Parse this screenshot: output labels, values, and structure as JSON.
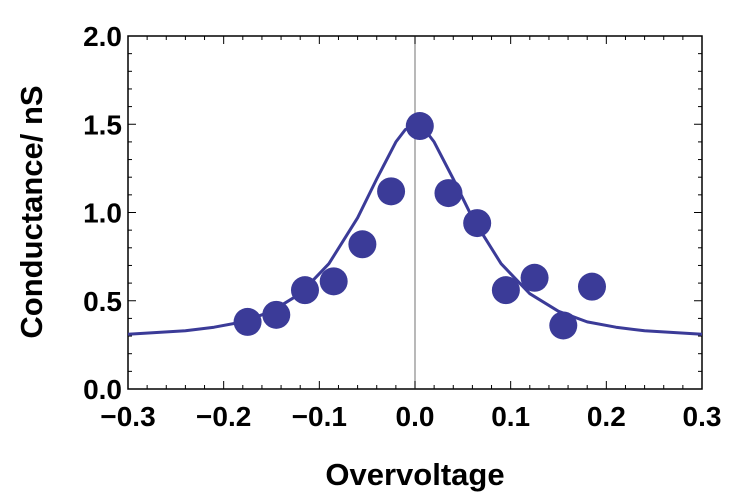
{
  "chart_data": {
    "type": "scatter",
    "title": "",
    "xlabel": "Overvoltage",
    "ylabel": "Conductance/ nS",
    "xlim": [
      -0.3,
      0.3
    ],
    "ylim": [
      0.0,
      2.0
    ],
    "x_ticks": [
      "-0.3",
      "-0.2",
      "-0.1",
      "0.0",
      "0.1",
      "0.2",
      "0.3"
    ],
    "x_tick_values": [
      -0.3,
      -0.2,
      -0.1,
      0.0,
      0.1,
      0.2,
      0.3
    ],
    "y_ticks": [
      "0.0",
      "0.5",
      "1.0",
      "1.5",
      "2.0"
    ],
    "y_tick_values": [
      0.0,
      0.5,
      1.0,
      1.5,
      2.0
    ],
    "grid": false,
    "color": "#3b3b98",
    "series": [
      {
        "type": "scatter",
        "x": [
          -0.175,
          -0.145,
          -0.115,
          -0.085,
          -0.055,
          -0.025,
          0.005,
          0.035,
          0.065,
          0.095,
          0.125,
          0.155,
          0.185
        ],
        "y": [
          0.38,
          0.42,
          0.56,
          0.61,
          0.82,
          1.12,
          1.49,
          1.11,
          0.94,
          0.56,
          0.63,
          0.36,
          0.58
        ]
      },
      {
        "type": "line",
        "x": [
          -0.3,
          -0.27,
          -0.24,
          -0.21,
          -0.18,
          -0.15,
          -0.12,
          -0.09,
          -0.06,
          -0.04,
          -0.02,
          -0.01,
          0.0,
          0.01,
          0.02,
          0.04,
          0.06,
          0.09,
          0.12,
          0.15,
          0.18,
          0.21,
          0.24,
          0.27,
          0.3
        ],
        "y": [
          0.31,
          0.32,
          0.33,
          0.35,
          0.38,
          0.44,
          0.54,
          0.71,
          0.97,
          1.19,
          1.4,
          1.47,
          1.49,
          1.47,
          1.4,
          1.19,
          0.97,
          0.71,
          0.54,
          0.44,
          0.38,
          0.35,
          0.33,
          0.32,
          0.31
        ]
      }
    ]
  }
}
